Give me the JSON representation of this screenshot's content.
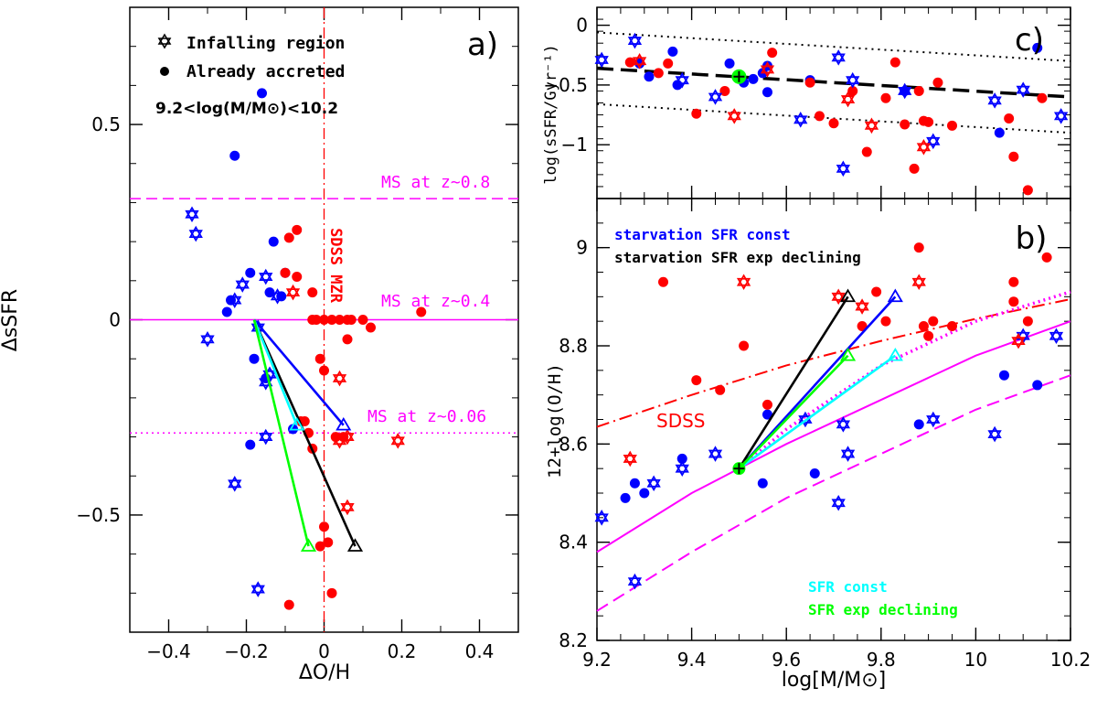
{
  "chart_data": [
    {
      "type": "scatter",
      "panel_label": "a)",
      "xlabel": "ΔO/H",
      "ylabel": "ΔsSFR",
      "xlim": [
        -0.5,
        0.5
      ],
      "ylim": [
        -0.8,
        0.8
      ],
      "xticks": [
        -0.4,
        -0.2,
        0,
        0.2,
        0.4
      ],
      "xtick_labels": [
        "−0.4",
        "−0.2",
        "0",
        "0.2",
        "0.4"
      ],
      "yticks": [
        -0.5,
        0,
        0.5
      ],
      "ytick_labels": [
        "−0.5",
        "0",
        "0.5"
      ],
      "legend": {
        "infalling_label": "Infalling region",
        "accreted_label": "Already accreted",
        "mass_range_label": "9.2<log(M/M⊙)<10.2"
      },
      "ms_lines": [
        {
          "label": "MS at z~0.8",
          "y": 0.31,
          "style": "dashed",
          "color": "#ff00ff"
        },
        {
          "label": "MS at z~0.4",
          "y": 0.0,
          "style": "solid",
          "color": "#ff00ff"
        },
        {
          "label": "MS at z~0.06",
          "y": -0.29,
          "style": "dotted",
          "color": "#ff00ff"
        }
      ],
      "vertical_line": {
        "x": 0.0,
        "label": "SDSS MZR",
        "color": "#ff0000"
      },
      "blue_filled": [
        [
          -0.16,
          0.58
        ],
        [
          -0.23,
          0.42
        ],
        [
          -0.13,
          0.2
        ],
        [
          -0.19,
          0.12
        ],
        [
          -0.1,
          0.12
        ],
        [
          -0.24,
          0.05
        ],
        [
          -0.14,
          0.07
        ],
        [
          -0.11,
          0.06
        ],
        [
          -0.25,
          0.02
        ],
        [
          -0.18,
          -0.1
        ],
        [
          -0.15,
          -0.15
        ],
        [
          -0.19,
          -0.32
        ],
        [
          -0.08,
          -0.28
        ]
      ],
      "blue_stars": [
        [
          -0.34,
          0.27
        ],
        [
          -0.33,
          0.22
        ],
        [
          -0.21,
          0.09
        ],
        [
          -0.15,
          0.11
        ],
        [
          -0.12,
          0.06
        ],
        [
          -0.23,
          0.05
        ],
        [
          -0.3,
          -0.05
        ],
        [
          -0.17,
          -0.02
        ],
        [
          -0.15,
          -0.16
        ],
        [
          -0.14,
          -0.14
        ],
        [
          -0.15,
          -0.3
        ],
        [
          -0.23,
          -0.42
        ],
        [
          -0.17,
          -0.69
        ]
      ],
      "red_filled": [
        [
          -0.07,
          0.23
        ],
        [
          -0.09,
          0.21
        ],
        [
          -0.1,
          0.12
        ],
        [
          -0.07,
          0.11
        ],
        [
          -0.03,
          0.07
        ],
        [
          -0.03,
          0.0
        ],
        [
          -0.02,
          0.0
        ],
        [
          0.0,
          0.0
        ],
        [
          0.02,
          0.0
        ],
        [
          0.04,
          0.0
        ],
        [
          0.06,
          0.0
        ],
        [
          0.07,
          0.0
        ],
        [
          0.1,
          0.0
        ],
        [
          0.12,
          -0.02
        ],
        [
          0.06,
          -0.05
        ],
        [
          -0.01,
          -0.1
        ],
        [
          0.0,
          -0.13
        ],
        [
          -0.05,
          -0.26
        ],
        [
          -0.06,
          -0.26
        ],
        [
          -0.04,
          -0.29
        ],
        [
          -0.03,
          -0.33
        ],
        [
          0.03,
          -0.3
        ],
        [
          0.05,
          -0.3
        ],
        [
          0.0,
          -0.53
        ],
        [
          0.01,
          -0.57
        ],
        [
          -0.01,
          -0.58
        ],
        [
          0.02,
          -0.7
        ],
        [
          -0.09,
          -0.73
        ],
        [
          0.25,
          0.02
        ]
      ],
      "red_stars": [
        [
          -0.08,
          0.07
        ],
        [
          0.04,
          -0.15
        ],
        [
          0.04,
          -0.31
        ],
        [
          0.06,
          -0.3
        ],
        [
          0.19,
          -0.31
        ],
        [
          0.06,
          -0.48
        ]
      ],
      "tracks": [
        {
          "name": "starvation SFR const",
          "color": "#0000ff",
          "from": [
            -0.18,
            0.0
          ],
          "to": [
            0.05,
            -0.27
          ]
        },
        {
          "name": "starvation SFR exp declining",
          "color": "#000000",
          "from": [
            -0.18,
            0.0
          ],
          "to": [
            0.08,
            -0.58
          ]
        },
        {
          "name": "SFR const",
          "color": "#00ffff",
          "from": [
            -0.18,
            0.0
          ],
          "to": [
            -0.07,
            -0.27
          ]
        },
        {
          "name": "SFR exp declining",
          "color": "#00ff00",
          "from": [
            -0.18,
            0.0
          ],
          "to": [
            -0.04,
            -0.58
          ]
        }
      ]
    },
    {
      "type": "scatter",
      "panel_label": "c)",
      "ylabel": "log(sSFR/Gyr⁻¹)",
      "xlim": [
        9.2,
        10.2
      ],
      "ylim": [
        -1.45,
        0.15
      ],
      "yticks": [
        0,
        -0.5,
        -1
      ],
      "ytick_labels": [
        "0",
        "−0.5",
        "−1"
      ],
      "fit_line": {
        "x": [
          9.2,
          10.2
        ],
        "y": [
          -0.36,
          -0.6
        ],
        "style": "thick dashed",
        "color": "#000000"
      },
      "scatter_lines": {
        "upper": {
          "x": [
            9.2,
            10.2
          ],
          "y": [
            -0.06,
            -0.3
          ]
        },
        "lower": {
          "x": [
            9.2,
            10.2
          ],
          "y": [
            -0.66,
            -0.9
          ]
        }
      },
      "reference_point": {
        "x": 9.5,
        "y": -0.43
      },
      "blue_filled": [
        [
          9.29,
          -0.32
        ],
        [
          9.31,
          -0.43
        ],
        [
          9.36,
          -0.22
        ],
        [
          9.37,
          -0.5
        ],
        [
          9.48,
          -0.32
        ],
        [
          9.51,
          -0.48
        ],
        [
          9.53,
          -0.45
        ],
        [
          9.55,
          -0.4
        ],
        [
          9.56,
          -0.34
        ],
        [
          9.56,
          -0.56
        ],
        [
          9.65,
          -0.46
        ],
        [
          9.85,
          -0.55
        ],
        [
          10.05,
          -0.9
        ],
        [
          10.13,
          -0.19
        ]
      ],
      "blue_stars": [
        [
          9.21,
          -0.29
        ],
        [
          9.28,
          -0.13
        ],
        [
          9.38,
          -0.46
        ],
        [
          9.45,
          -0.6
        ],
        [
          9.63,
          -0.79
        ],
        [
          9.71,
          -0.27
        ],
        [
          9.72,
          -1.2
        ],
        [
          9.74,
          -0.46
        ],
        [
          9.85,
          -0.55
        ],
        [
          9.91,
          -0.97
        ],
        [
          10.04,
          -0.63
        ],
        [
          10.1,
          -0.54
        ],
        [
          10.18,
          -0.76
        ]
      ],
      "red_filled": [
        [
          9.27,
          -0.31
        ],
        [
          9.33,
          -0.4
        ],
        [
          9.35,
          -0.32
        ],
        [
          9.41,
          -0.74
        ],
        [
          9.47,
          -0.55
        ],
        [
          9.57,
          -0.23
        ],
        [
          9.65,
          -0.48
        ],
        [
          9.67,
          -0.76
        ],
        [
          9.7,
          -0.82
        ],
        [
          9.74,
          -0.55
        ],
        [
          9.77,
          -1.06
        ],
        [
          9.81,
          -0.61
        ],
        [
          9.83,
          -0.31
        ],
        [
          9.85,
          -0.83
        ],
        [
          9.87,
          -1.2
        ],
        [
          9.88,
          -0.55
        ],
        [
          9.89,
          -0.8
        ],
        [
          9.9,
          -0.81
        ],
        [
          9.92,
          -0.48
        ],
        [
          9.95,
          -0.84
        ],
        [
          10.07,
          -0.78
        ],
        [
          10.08,
          -1.1
        ],
        [
          10.11,
          -1.38
        ],
        [
          10.14,
          -0.61
        ]
      ],
      "red_stars": [
        [
          9.29,
          -0.3
        ],
        [
          9.49,
          -0.76
        ],
        [
          9.56,
          -0.37
        ],
        [
          9.73,
          -0.62
        ],
        [
          9.78,
          -0.84
        ],
        [
          9.89,
          -1.02
        ]
      ]
    },
    {
      "type": "scatter",
      "panel_label": "b)",
      "xlabel": "log[M/M⊙]",
      "ylabel": "12+log(O/H)",
      "xlim": [
        9.2,
        10.2
      ],
      "ylim": [
        8.2,
        9.1
      ],
      "xticks": [
        9.2,
        9.4,
        9.6,
        9.8,
        10,
        10.2
      ],
      "xtick_labels": [
        "9.2",
        "9.4",
        "9.6",
        "9.8",
        "10",
        "10.2"
      ],
      "yticks": [
        8.2,
        8.4,
        8.6,
        8.8,
        9
      ],
      "ytick_labels": [
        "8.2",
        "8.4",
        "8.6",
        "8.8",
        "9"
      ],
      "legend_top": [
        {
          "label": "starvation SFR const",
          "color": "#0000ff"
        },
        {
          "label": "starvation SFR exp declining",
          "color": "#000000"
        }
      ],
      "legend_bottom": [
        {
          "label": "SFR const",
          "color": "#00ffff"
        },
        {
          "label": "SFR exp declining",
          "color": "#00ff00"
        }
      ],
      "sdss_label": "SDSS",
      "curves": [
        {
          "name": "SDSS",
          "style": "dashdot",
          "color": "#ff0000",
          "x": [
            9.2,
            9.4,
            9.6,
            9.8,
            10.0,
            10.2
          ],
          "y": [
            8.635,
            8.7,
            8.76,
            8.81,
            8.855,
            8.895
          ]
        },
        {
          "name": "MS z~0.4",
          "style": "solid",
          "color": "#ff00ff",
          "x": [
            9.2,
            9.4,
            9.6,
            9.8,
            10.0,
            10.2
          ],
          "y": [
            8.38,
            8.5,
            8.6,
            8.69,
            8.78,
            8.85
          ]
        },
        {
          "name": "MS z~0.8",
          "style": "dashed",
          "color": "#ff00ff",
          "x": [
            9.2,
            9.4,
            9.6,
            9.8,
            10.0,
            10.2
          ],
          "y": [
            8.26,
            8.38,
            8.49,
            8.58,
            8.67,
            8.74
          ]
        },
        {
          "name": "MS z~0.06",
          "style": "dotted",
          "color": "#ff00ff",
          "x": [
            9.5,
            9.6,
            9.8,
            10.0,
            10.2
          ],
          "y": [
            8.55,
            8.63,
            8.76,
            8.85,
            8.91
          ]
        }
      ],
      "reference_point": {
        "x": 9.5,
        "y": 8.55
      },
      "tracks": [
        {
          "name": "starvation SFR const",
          "color": "#0000ff",
          "from": [
            9.5,
            8.55
          ],
          "to": [
            9.83,
            8.9
          ]
        },
        {
          "name": "starvation SFR exp declining",
          "color": "#000000",
          "from": [
            9.5,
            8.55
          ],
          "to": [
            9.73,
            8.9
          ]
        },
        {
          "name": "SFR const",
          "color": "#00ffff",
          "from": [
            9.5,
            8.55
          ],
          "to": [
            9.83,
            8.78
          ]
        },
        {
          "name": "SFR exp declining",
          "color": "#00ff00",
          "from": [
            9.5,
            8.55
          ],
          "to": [
            9.73,
            8.78
          ]
        }
      ],
      "blue_filled": [
        [
          9.26,
          8.49
        ],
        [
          9.28,
          8.52
        ],
        [
          9.3,
          8.5
        ],
        [
          9.38,
          8.57
        ],
        [
          9.5,
          8.55
        ],
        [
          9.55,
          8.52
        ],
        [
          9.56,
          8.66
        ],
        [
          9.66,
          8.54
        ],
        [
          9.88,
          8.64
        ],
        [
          10.06,
          8.74
        ],
        [
          10.13,
          8.72
        ]
      ],
      "blue_stars": [
        [
          9.21,
          8.45
        ],
        [
          9.28,
          8.32
        ],
        [
          9.32,
          8.52
        ],
        [
          9.38,
          8.55
        ],
        [
          9.45,
          8.58
        ],
        [
          9.64,
          8.65
        ],
        [
          9.71,
          8.48
        ],
        [
          9.72,
          8.64
        ],
        [
          9.73,
          8.58
        ],
        [
          9.91,
          8.65
        ],
        [
          10.04,
          8.62
        ],
        [
          10.1,
          8.82
        ],
        [
          10.17,
          8.82
        ]
      ],
      "red_filled": [
        [
          9.34,
          8.93
        ],
        [
          9.41,
          8.73
        ],
        [
          9.46,
          8.71
        ],
        [
          9.51,
          8.8
        ],
        [
          9.56,
          8.68
        ],
        [
          9.76,
          8.84
        ],
        [
          9.79,
          8.91
        ],
        [
          9.81,
          8.85
        ],
        [
          9.88,
          9.0
        ],
        [
          9.89,
          8.84
        ],
        [
          9.9,
          8.82
        ],
        [
          9.91,
          8.85
        ],
        [
          9.95,
          8.84
        ],
        [
          10.08,
          8.89
        ],
        [
          10.08,
          8.93
        ],
        [
          10.11,
          8.85
        ],
        [
          10.15,
          8.98
        ]
      ],
      "red_stars": [
        [
          9.27,
          8.57
        ],
        [
          9.51,
          8.93
        ],
        [
          9.71,
          8.9
        ],
        [
          9.76,
          8.88
        ],
        [
          9.88,
          8.93
        ],
        [
          10.09,
          8.81
        ]
      ]
    }
  ]
}
